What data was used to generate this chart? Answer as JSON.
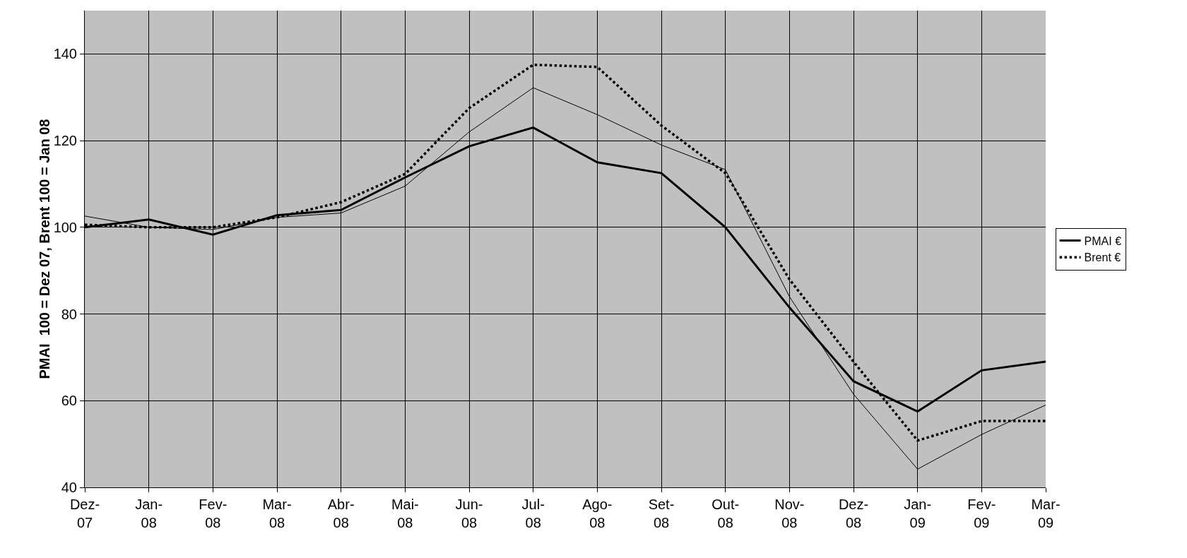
{
  "chart_data": {
    "type": "line",
    "ylabel": "PMAI  100 = Dez 07, Brent 100 = Jan 08",
    "categories": [
      "Dez-07",
      "Jan-08",
      "Fev-08",
      "Mar-08",
      "Abr-08",
      "Mai-08",
      "Jun-08",
      "Jul-08",
      "Ago-08",
      "Set-08",
      "Out-08",
      "Nov-08",
      "Dez-08",
      "Jan-09",
      "Fev-09",
      "Mar-09"
    ],
    "series": [
      {
        "name": "PMAI €",
        "color": "#000000",
        "line_style": "solid",
        "values": [
          100,
          101.8,
          98.3,
          102.8,
          104,
          111.5,
          118.7,
          123,
          115,
          112.5,
          100,
          81.5,
          64.5,
          57.5,
          67,
          69
        ]
      },
      {
        "color": "#000000",
        "line_style": "solid",
        "values": [
          102.6,
          100,
          99.5,
          102.3,
          103.3,
          109.5,
          122,
          132.2,
          126,
          119,
          113.3,
          84,
          61.5,
          44.2,
          52.2,
          59
        ]
      },
      {
        "name": "Brent €",
        "color": "#000000",
        "line_style": "dotted",
        "values": [
          100.6,
          100,
          100,
          102.3,
          105.8,
          112.3,
          127.5,
          137.5,
          137,
          123.5,
          112.5,
          88,
          69,
          50.8,
          55.3,
          55.3
        ]
      }
    ],
    "ylim": [
      40,
      150
    ],
    "yticks": [
      40,
      60,
      80,
      100,
      120,
      140
    ],
    "grid": true,
    "legend": "right",
    "marker": "none"
  }
}
